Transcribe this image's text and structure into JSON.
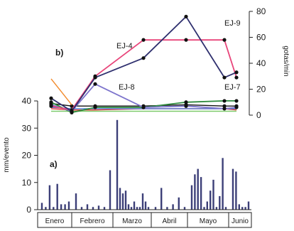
{
  "chart_data": [
    {
      "type": "line",
      "panel_label": "b)",
      "ylabel": "gotas/min",
      "ylim": [
        0,
        80
      ],
      "y_ticks": [
        0,
        20,
        40,
        60,
        80
      ],
      "y_axis_side": "right",
      "x": [
        0,
        1,
        2,
        3,
        4,
        5,
        6
      ],
      "series": [
        {
          "name": "EJ-9",
          "color": "#2e2f6e",
          "values": [
            13,
            3,
            29,
            44,
            76,
            29,
            33
          ]
        },
        {
          "name": "EJ-4",
          "color": "#e8457a",
          "values": [
            7,
            4,
            30,
            58,
            58,
            58,
            29
          ]
        },
        {
          "name": "EJ-8",
          "color": "#7d74cc",
          "values": [
            8,
            3,
            24,
            6,
            7,
            5,
            6
          ]
        },
        {
          "name": "EJ-7",
          "color": "#2e8a3e",
          "values": [
            10,
            2,
            6,
            6,
            10,
            11,
            11
          ]
        },
        {
          "name": "",
          "color": "#f28a2b",
          "values": [
            28,
            8,
            null,
            null,
            null,
            null,
            null
          ]
        },
        {
          "name": "",
          "color": "#111111",
          "values": [
            9,
            7,
            7,
            7,
            8,
            7,
            7
          ]
        },
        {
          "name": "",
          "color": "#4d78d6",
          "values": [
            6,
            5,
            5,
            5,
            5,
            5,
            5
          ]
        },
        {
          "name": "",
          "color": "#e53935",
          "values": [
            5,
            4,
            4,
            5,
            5,
            5,
            4
          ]
        },
        {
          "name": "",
          "color": "#7cc96a",
          "values": [
            3,
            3,
            3,
            3,
            3,
            3,
            3
          ]
        }
      ],
      "marked_series": [
        "EJ-9",
        "EJ-4",
        "EJ-8",
        "EJ-7",
        ""
      ]
    },
    {
      "type": "bar",
      "panel_label": "a)",
      "ylabel": "mm/evento",
      "ylim": [
        0,
        40
      ],
      "y_ticks": [
        0,
        10,
        20,
        30,
        40
      ],
      "color": "#3c3f78",
      "months": [
        "Enero",
        "Febrero",
        "Marzo",
        "Abril",
        "Mayo",
        "Junio"
      ],
      "bars_by_month": [
        [
          2.5,
          1,
          9,
          1,
          9.5,
          2,
          2,
          3
        ],
        [
          6,
          1,
          2,
          1,
          1.5,
          1,
          14.5
        ],
        [
          33,
          8,
          6,
          7,
          2,
          1,
          3,
          1,
          1,
          6,
          3,
          1
        ],
        [
          1,
          8,
          1,
          2,
          4.5,
          1
        ],
        [
          9,
          13,
          15,
          12,
          1,
          3,
          7,
          11,
          1,
          5,
          19,
          1
        ],
        [
          15,
          14,
          2,
          1,
          1,
          3
        ]
      ]
    }
  ]
}
